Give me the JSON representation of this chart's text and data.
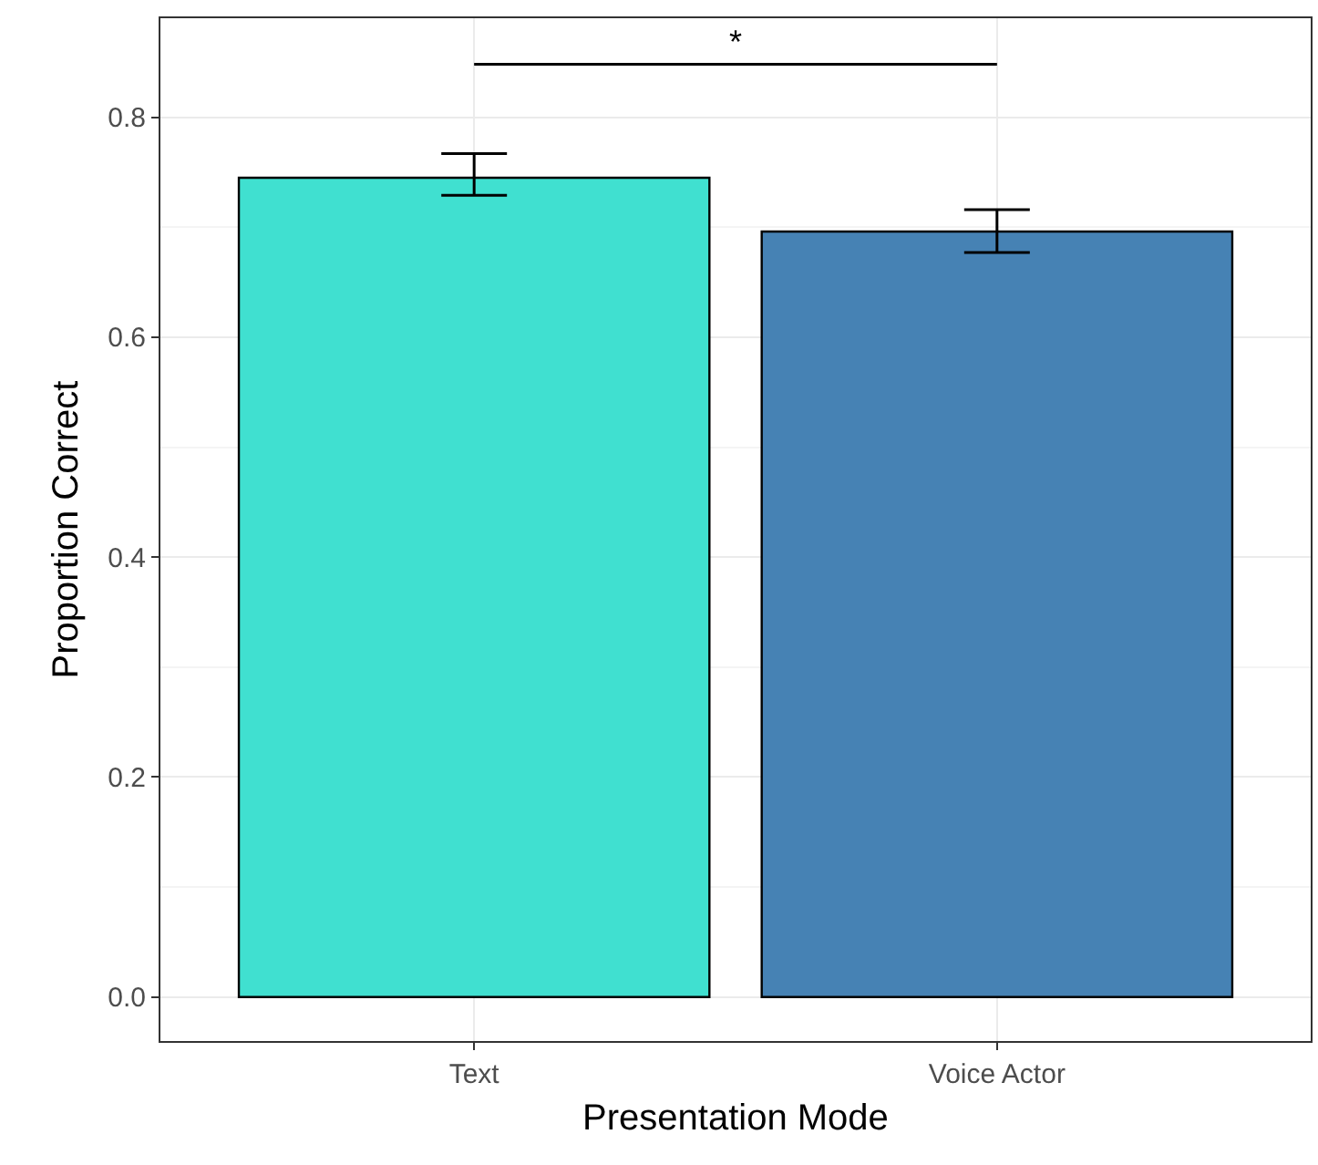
{
  "chart_data": {
    "type": "bar",
    "xlabel": "Presentation Mode",
    "ylabel": "Proportion Correct",
    "categories": [
      "Text",
      "Voice Actor"
    ],
    "values": [
      0.745,
      0.696
    ],
    "colors": [
      "#40e0d0",
      "#4682b4"
    ],
    "errors": [
      [
        0.729,
        0.767
      ],
      [
        0.677,
        0.716
      ]
    ],
    "annotations": [
      "*"
    ],
    "ylim": [
      -0.04,
      0.89
    ],
    "yticks": [
      {
        "value": 0,
        "label": "0.0"
      },
      {
        "value": 0.2,
        "label": "0.2"
      },
      {
        "value": 0.4,
        "label": "0.4"
      },
      {
        "value": 0.6,
        "label": "0.6"
      },
      {
        "value": 0.8,
        "label": "0.8"
      }
    ],
    "grid": true
  }
}
